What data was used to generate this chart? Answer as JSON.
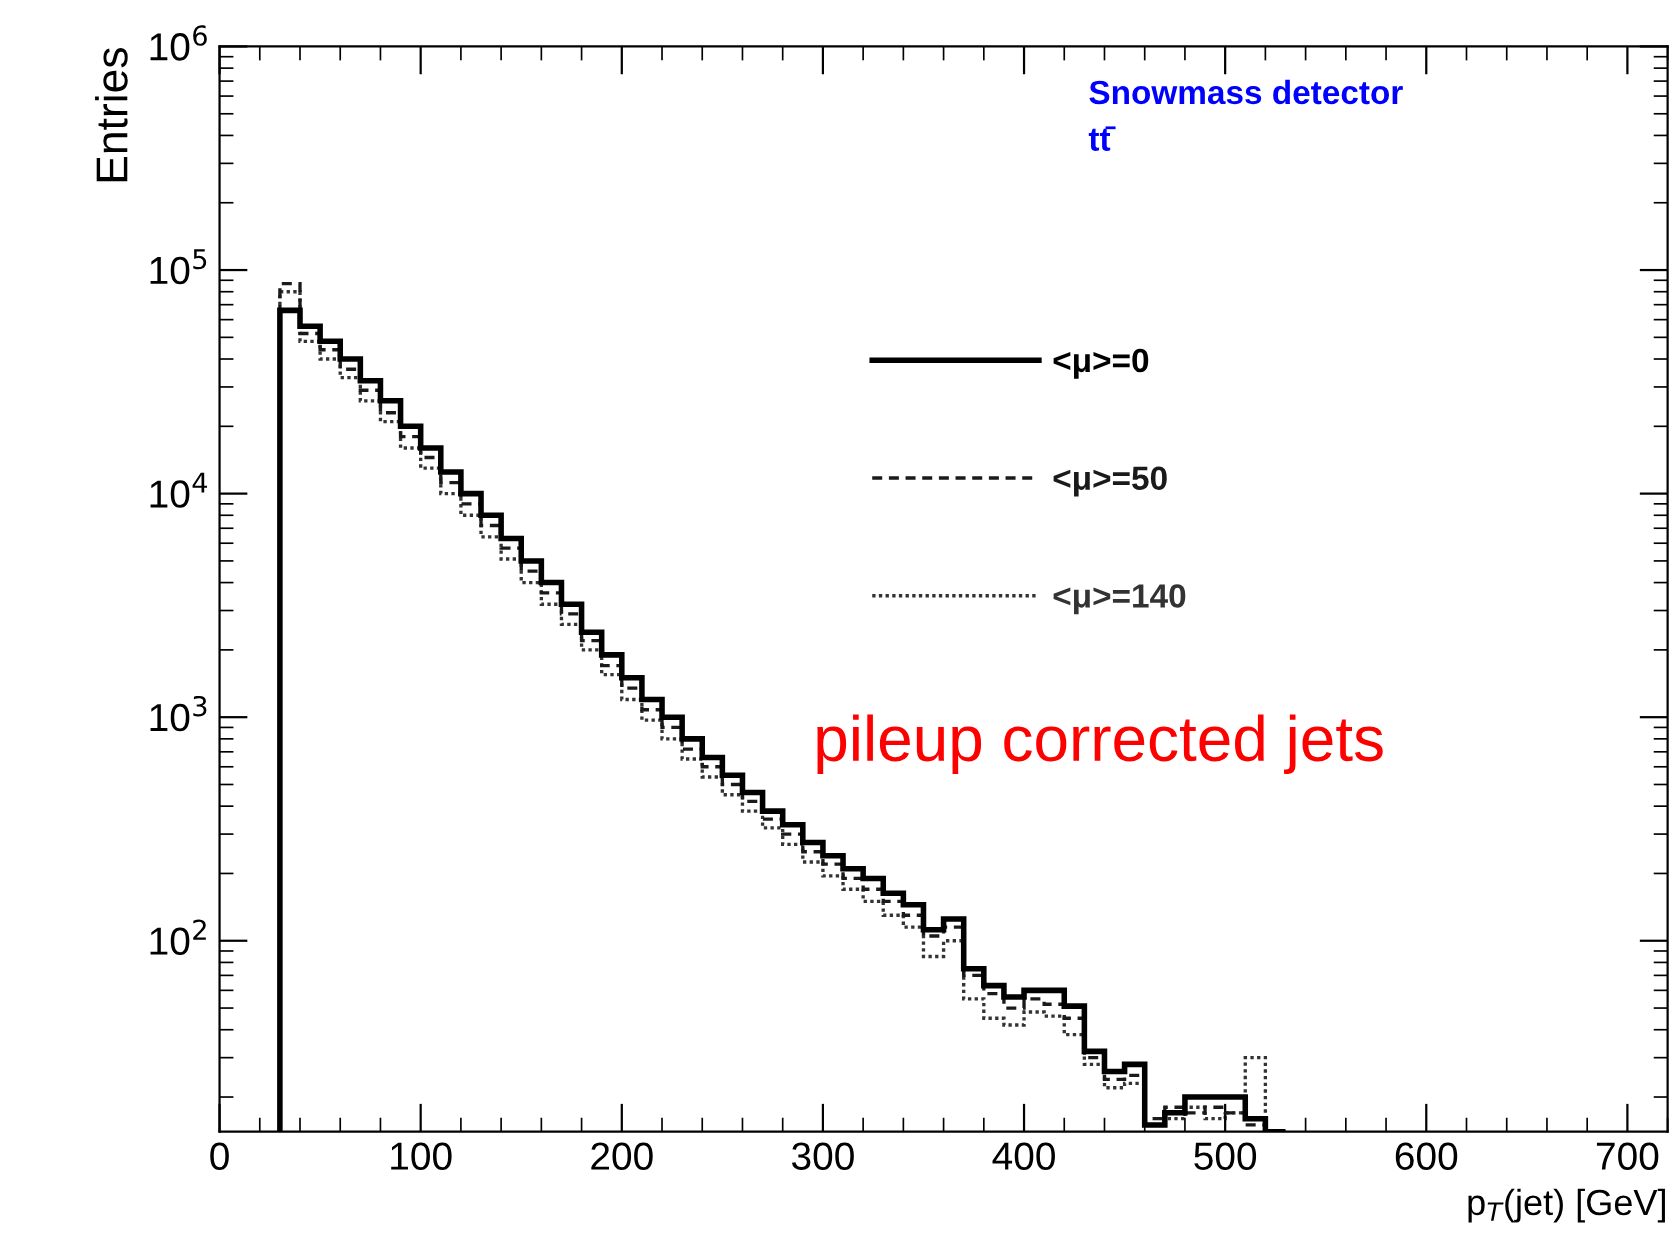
{
  "chart_data": {
    "type": "histogram",
    "xlabel": "p$_{T}$(jet) [GeV]",
    "ylabel": "Entries",
    "log": "y",
    "bins": [
      30,
      40,
      50,
      60,
      70,
      80,
      90,
      100,
      110,
      120,
      130,
      140,
      150,
      160,
      170,
      180,
      190,
      200,
      210,
      220,
      230,
      240,
      250,
      260,
      270,
      280,
      290,
      300,
      310,
      320,
      330,
      340,
      350,
      360,
      370,
      380,
      390,
      400,
      410,
      420,
      430,
      440,
      450,
      460,
      470,
      480,
      490,
      500,
      510,
      520,
      530
    ],
    "series": [
      {
        "name": "<μ>=0",
        "color": "#000000",
        "line_style": "solid",
        "values": [
          66000,
          56000,
          48000,
          40000,
          32000,
          26000,
          20000,
          16000,
          12500,
          10000,
          8000,
          6300,
          5000,
          4000,
          3200,
          2400,
          1900,
          1500,
          1200,
          1000,
          800,
          660,
          550,
          460,
          380,
          330,
          275,
          240,
          210,
          190,
          163,
          145,
          112,
          125,
          75,
          63,
          56,
          60,
          60,
          51,
          32,
          26,
          28,
          15,
          17,
          20,
          20,
          20,
          16,
          14
        ]
      },
      {
        "name": "<μ>=50",
        "color": "#1a1a1a",
        "line_style": "dashed",
        "values": [
          87000,
          52000,
          44000,
          36000,
          29000,
          23000,
          18000,
          14500,
          11200,
          9000,
          7200,
          5700,
          4500,
          3600,
          2900,
          2200,
          1700,
          1350,
          1080,
          900,
          720,
          600,
          500,
          420,
          350,
          300,
          250,
          220,
          190,
          170,
          150,
          130,
          105,
          115,
          70,
          58,
          50,
          55,
          52,
          45,
          30,
          24,
          25,
          16,
          18,
          17,
          18,
          17,
          15,
          14
        ]
      },
      {
        "name": "<μ>=140",
        "color": "#333333",
        "line_style": "dotted",
        "values": [
          80000,
          48000,
          40000,
          33000,
          26000,
          21000,
          16000,
          13000,
          10000,
          8000,
          6400,
          5100,
          4000,
          3200,
          2600,
          2000,
          1550,
          1200,
          970,
          800,
          650,
          540,
          450,
          380,
          320,
          270,
          225,
          195,
          170,
          150,
          130,
          115,
          85,
          100,
          55,
          45,
          42,
          48,
          46,
          38,
          28,
          22,
          23,
          15,
          16,
          18,
          16,
          17,
          30,
          14
        ]
      }
    ],
    "xlim": [
      0,
      720
    ],
    "xticks": [
      0,
      100,
      200,
      300,
      400,
      500,
      600,
      700
    ],
    "ylim": [
      14,
      1000000
    ],
    "yticks": [
      {
        "value": 100,
        "label": "10$^{2}$"
      },
      {
        "value": 1000,
        "label": "10$^{3}$"
      },
      {
        "value": 10000,
        "label": "10$^{4}$"
      },
      {
        "value": 100000,
        "label": "10$^{5}$"
      },
      {
        "value": 1000000,
        "label": "10$^{6}$"
      }
    ],
    "legend": "top",
    "grid": false,
    "annotations": [
      "Snowmass detector",
      "tt̄",
      "pileup corrected jets"
    ]
  }
}
